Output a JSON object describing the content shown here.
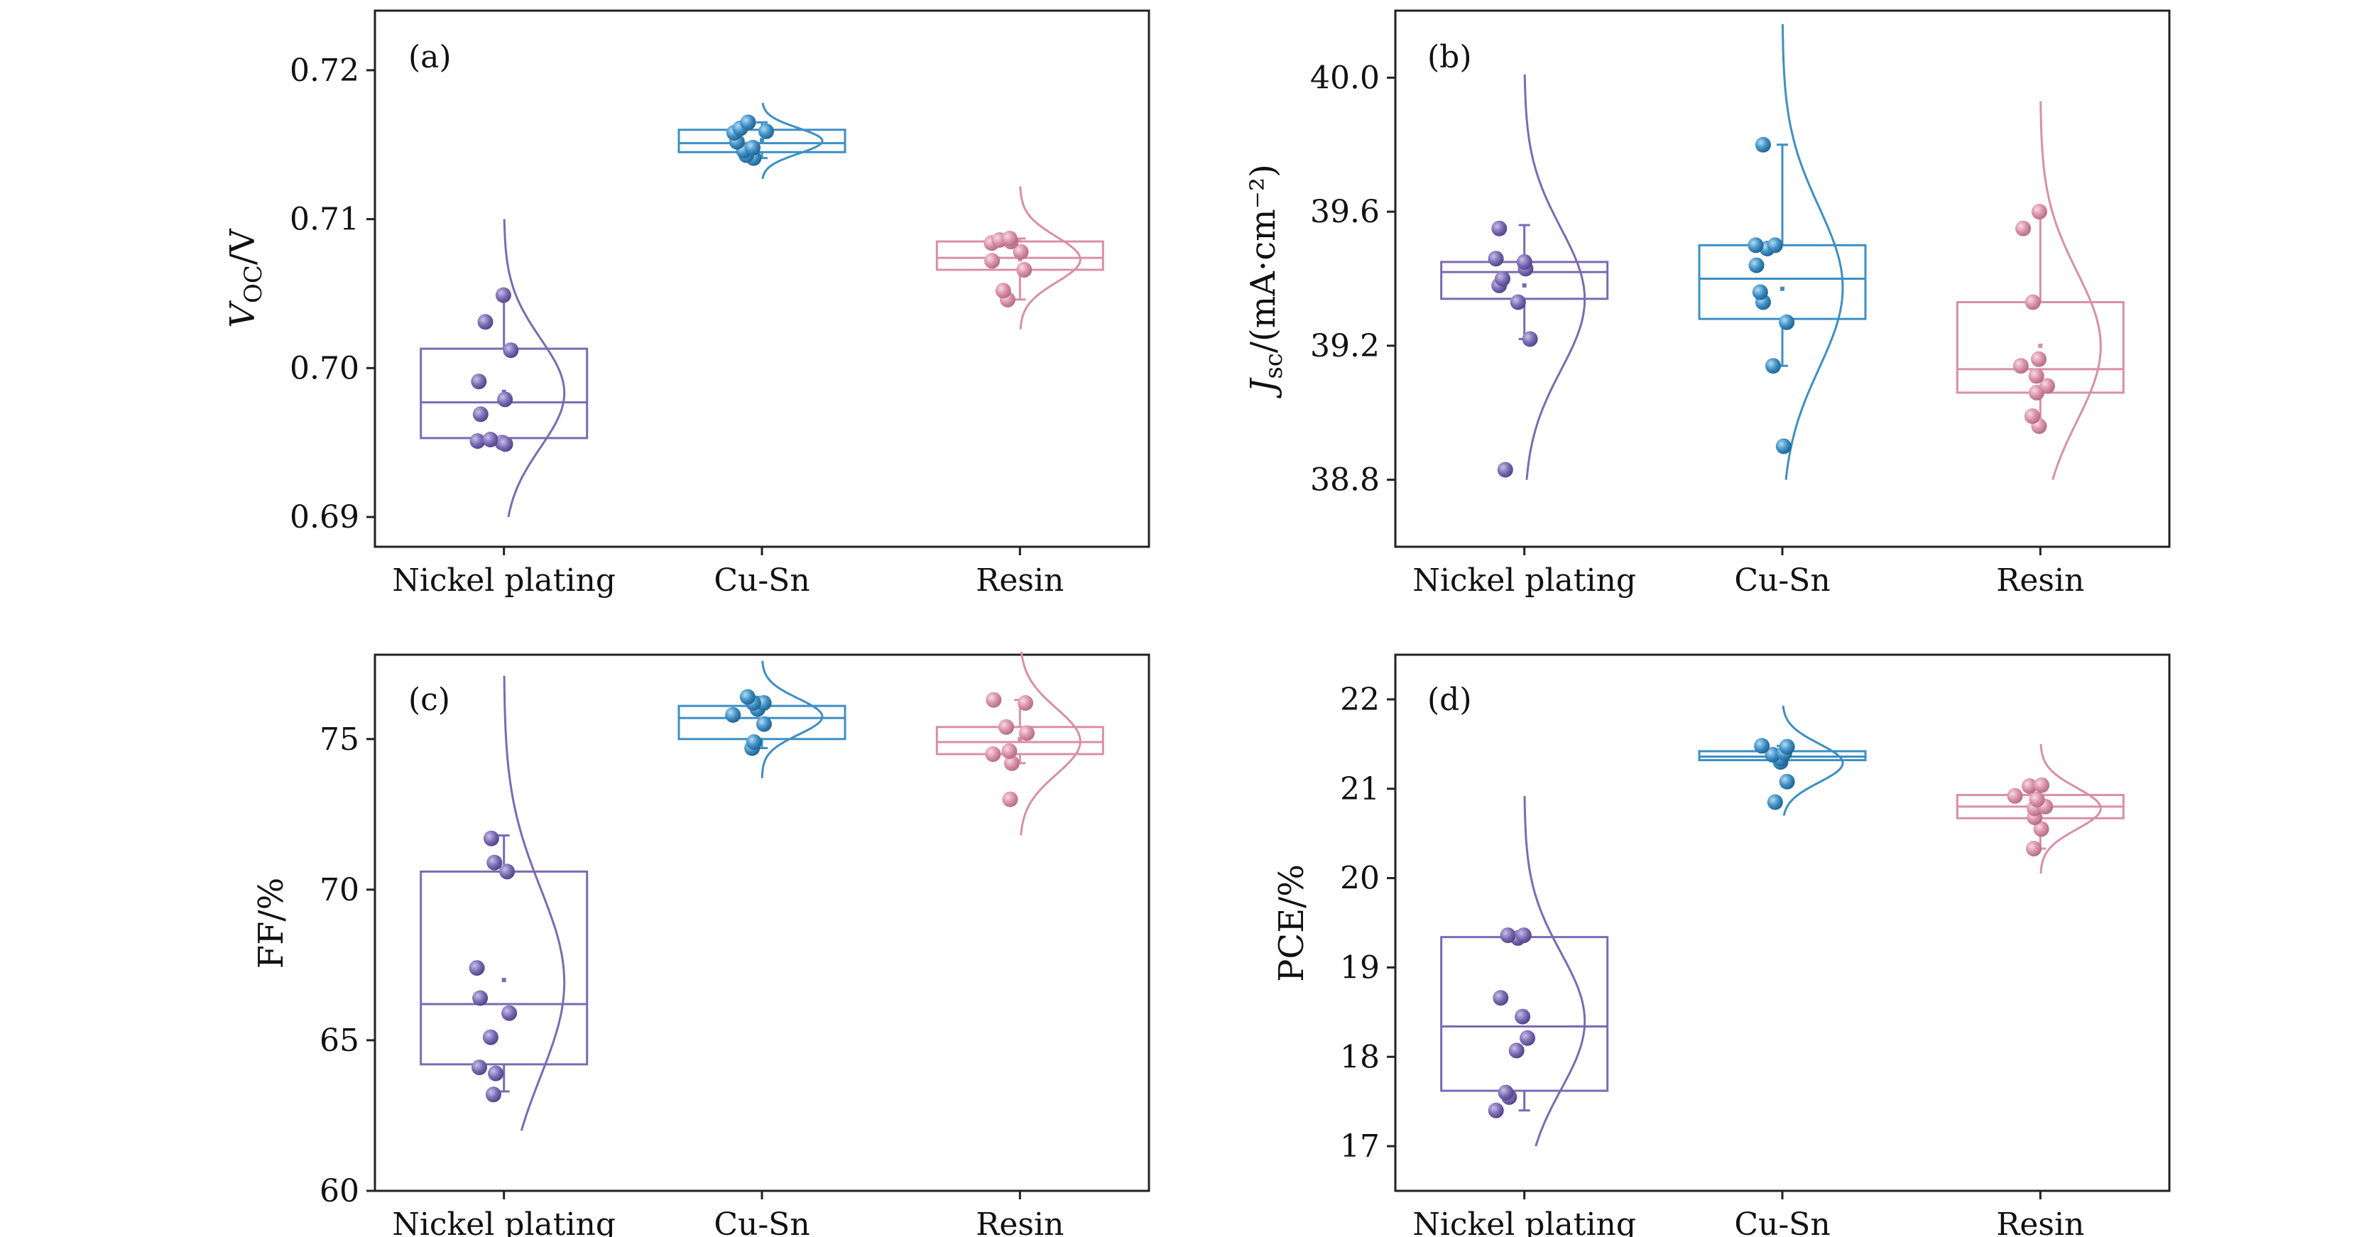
{
  "colors": {
    "Nickel plating": "#7a6bb3",
    "Cu-Sn": "#3d8fc4",
    "Resin": "#d98fa8",
    "axis": "#222222"
  },
  "chart_data": [
    {
      "type": "box",
      "panel": "(a)",
      "ylabel_main": "V",
      "ylabel_sub": "OC",
      "ylabel_rest": "/V",
      "ylim": [
        0.688,
        0.724
      ],
      "yticks": [
        0.69,
        0.7,
        0.71,
        0.72
      ],
      "ytick_labels": [
        "0.69",
        "0.70",
        "0.71",
        "0.72"
      ],
      "categories": [
        "Nickel plating",
        "Cu-Sn",
        "Resin"
      ],
      "series": [
        {
          "name": "Nickel plating",
          "points": [
            0.695,
            0.6951,
            0.6952,
            0.6949,
            0.6969,
            0.6979,
            0.6991,
            0.7012,
            0.7031,
            0.7049
          ],
          "q1": 0.6953,
          "median": 0.6977,
          "q3": 0.7013,
          "whisker_low": 0.695,
          "whisker_high": 0.705,
          "mean": 0.6984,
          "dist_low": 0.69,
          "dist_high": 0.71
        },
        {
          "name": "Cu-Sn",
          "points": [
            0.7141,
            0.7143,
            0.7146,
            0.7148,
            0.7152,
            0.7158,
            0.7159,
            0.7161,
            0.7165
          ],
          "q1": 0.7145,
          "median": 0.7151,
          "q3": 0.716,
          "whisker_low": 0.7141,
          "whisker_high": 0.7165,
          "mean": 0.7153,
          "dist_low": 0.7127,
          "dist_high": 0.7178
        },
        {
          "name": "Resin",
          "points": [
            0.7046,
            0.7052,
            0.7066,
            0.7072,
            0.7078,
            0.7084,
            0.7085,
            0.7086,
            0.7087
          ],
          "q1": 0.7066,
          "median": 0.7074,
          "q3": 0.7085,
          "whisker_low": 0.7046,
          "whisker_high": 0.7087,
          "mean": 0.7073,
          "dist_low": 0.7026,
          "dist_high": 0.7122
        }
      ]
    },
    {
      "type": "box",
      "panel": "(b)",
      "ylabel_main": "J",
      "ylabel_sub": "sc",
      "ylabel_rest": "/(mA·cm⁻²)",
      "ylim": [
        38.6,
        40.2
      ],
      "yticks": [
        38.8,
        39.2,
        39.6,
        40.0
      ],
      "ytick_labels": [
        "38.8",
        "39.2",
        "39.6",
        "40.0"
      ],
      "categories": [
        "Nickel plating",
        "Cu-Sn",
        "Resin"
      ],
      "series": [
        {
          "name": "Nickel plating",
          "points": [
            38.83,
            39.22,
            39.33,
            39.38,
            39.4,
            39.43,
            39.45,
            39.46,
            39.55
          ],
          "q1": 39.34,
          "median": 39.42,
          "q3": 39.45,
          "whisker_low": 39.22,
          "whisker_high": 39.56,
          "mean": 39.38,
          "dist_low": 38.8,
          "dist_high": 40.01
        },
        {
          "name": "Cu-Sn",
          "points": [
            38.9,
            39.14,
            39.27,
            39.33,
            39.36,
            39.44,
            39.49,
            39.5,
            39.5,
            39.8
          ],
          "q1": 39.28,
          "median": 39.4,
          "q3": 39.5,
          "whisker_low": 39.14,
          "whisker_high": 39.8,
          "mean": 39.37,
          "dist_low": 38.8,
          "dist_high": 40.16
        },
        {
          "name": "Resin",
          "points": [
            38.96,
            38.99,
            39.06,
            39.08,
            39.11,
            39.14,
            39.16,
            39.33,
            39.55,
            39.6
          ],
          "q1": 39.06,
          "median": 39.13,
          "q3": 39.33,
          "whisker_low": 38.96,
          "whisker_high": 39.61,
          "mean": 39.2,
          "dist_low": 38.8,
          "dist_high": 39.93
        }
      ]
    },
    {
      "type": "box",
      "panel": "(c)",
      "ylabel_main": "FF/%",
      "ylabel_sub": "",
      "ylabel_rest": "",
      "ylim": [
        60,
        77.8
      ],
      "yticks": [
        60,
        65,
        70,
        75
      ],
      "ytick_labels": [
        "60",
        "65",
        "70",
        "75"
      ],
      "categories": [
        "Nickel plating",
        "Cu-Sn",
        "Resin"
      ],
      "series": [
        {
          "name": "Nickel plating",
          "points": [
            63.2,
            63.9,
            64.1,
            65.1,
            65.9,
            66.4,
            67.4,
            70.6,
            70.9,
            71.7
          ],
          "q1": 64.2,
          "median": 66.2,
          "q3": 70.6,
          "whisker_low": 63.3,
          "whisker_high": 71.8,
          "mean": 67.0,
          "dist_low": 62.0,
          "dist_high": 77.1
        },
        {
          "name": "Cu-Sn",
          "points": [
            74.7,
            74.9,
            75.5,
            75.8,
            76.0,
            76.0,
            76.2,
            76.2,
            76.4
          ],
          "q1": 75.0,
          "median": 75.7,
          "q3": 76.1,
          "whisker_low": 74.7,
          "whisker_high": 76.4,
          "mean": 75.6,
          "dist_low": 73.7,
          "dist_high": 77.6
        },
        {
          "name": "Resin",
          "points": [
            73.0,
            74.2,
            74.5,
            74.6,
            75.2,
            75.4,
            76.2,
            76.3
          ],
          "q1": 74.5,
          "median": 74.9,
          "q3": 75.4,
          "whisker_low": 74.2,
          "whisker_high": 76.3,
          "mean": 75.0,
          "dist_low": 71.8,
          "dist_high": 77.9
        }
      ]
    },
    {
      "type": "box",
      "panel": "(d)",
      "ylabel_main": "PCE/%",
      "ylabel_sub": "",
      "ylabel_rest": "",
      "ylim": [
        16.5,
        22.5
      ],
      "yticks": [
        17,
        18,
        19,
        20,
        21,
        22
      ],
      "ytick_labels": [
        "17",
        "18",
        "19",
        "20",
        "21",
        "22"
      ],
      "categories": [
        "Nickel plating",
        "Cu-Sn",
        "Resin"
      ],
      "series": [
        {
          "name": "Nickel plating",
          "points": [
            17.4,
            17.55,
            17.6,
            18.07,
            18.21,
            18.45,
            18.66,
            19.33,
            19.36,
            19.36
          ],
          "q1": 17.62,
          "median": 18.34,
          "q3": 19.34,
          "whisker_low": 17.4,
          "whisker_high": 19.37,
          "mean": 18.4,
          "dist_low": 17.0,
          "dist_high": 20.92
        },
        {
          "name": "Cu-Sn",
          "points": [
            20.85,
            21.08,
            21.3,
            21.34,
            21.38,
            21.4,
            21.47,
            21.48
          ],
          "q1": 21.32,
          "median": 21.36,
          "q3": 21.42,
          "whisker_low": 21.3,
          "whisker_high": 21.48,
          "mean": 21.34,
          "dist_low": 20.7,
          "dist_high": 21.93
        },
        {
          "name": "Resin",
          "points": [
            20.33,
            20.55,
            20.68,
            20.78,
            20.8,
            20.88,
            20.92,
            21.03,
            21.04
          ],
          "q1": 20.67,
          "median": 20.8,
          "q3": 20.93,
          "whisker_low": 20.33,
          "whisker_high": 21.04,
          "mean": 20.78,
          "dist_low": 20.05,
          "dist_high": 21.5
        }
      ]
    }
  ]
}
